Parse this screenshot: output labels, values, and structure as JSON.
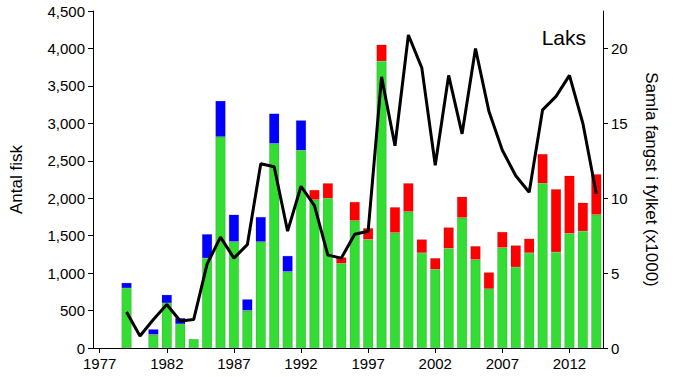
{
  "chart_data": {
    "type": "bar",
    "title": "Laks",
    "y_label": "Antal fisk",
    "y2_label": "Samla fangst i fylket (x1000)",
    "stacked": true,
    "grid": false,
    "categories": [
      1977,
      null,
      null,
      null,
      null,
      1982,
      null,
      null,
      null,
      null,
      1987,
      null,
      null,
      null,
      null,
      1992,
      null,
      null,
      null,
      null,
      1997,
      null,
      null,
      null,
      null,
      2002,
      null,
      null,
      null,
      null,
      2007,
      null,
      null,
      null,
      null,
      2012,
      null,
      null
    ],
    "ylim": [
      0,
      4500
    ],
    "yticks": [
      0,
      500,
      1000,
      1500,
      2000,
      2500,
      3000,
      3500,
      4000,
      4500
    ],
    "y2lim": [
      0,
      22.5
    ],
    "y2ticks": [
      0,
      5,
      10,
      15,
      20
    ],
    "series": [
      {
        "type": "bar",
        "color": "#33dd33",
        "values": [
          null,
          null,
          800,
          null,
          180,
          600,
          320,
          120,
          1200,
          2820,
          1420,
          500,
          1420,
          2730,
          1020,
          2640,
          1980,
          2000,
          1130,
          1700,
          1450,
          3830,
          1540,
          1820,
          1270,
          1050,
          1330,
          1740,
          1180,
          790,
          1340,
          1080,
          1270,
          2200,
          1280,
          1530,
          1560,
          1780
        ]
      },
      {
        "type": "bar",
        "color": "#ff0000",
        "values": [
          null,
          null,
          null,
          null,
          null,
          null,
          null,
          null,
          null,
          null,
          null,
          null,
          null,
          null,
          null,
          null,
          130,
          200,
          80,
          250,
          150,
          220,
          340,
          380,
          180,
          150,
          280,
          280,
          180,
          220,
          210,
          290,
          190,
          390,
          840,
          770,
          380,
          540
        ]
      },
      {
        "type": "bar",
        "color": "#0000ff",
        "values": [
          null,
          null,
          70,
          null,
          70,
          110,
          80,
          null,
          320,
          480,
          360,
          150,
          330,
          400,
          210,
          400,
          null,
          null,
          null,
          null,
          null,
          null,
          null,
          null,
          null,
          null,
          null,
          null,
          null,
          null,
          null,
          null,
          null,
          null,
          null,
          null,
          null,
          null
        ]
      },
      {
        "type": "line",
        "axis": "y2",
        "color": "#000000",
        "values": [
          null,
          null,
          2.4,
          0.8,
          1.9,
          2.9,
          1.8,
          1.9,
          5.6,
          7.4,
          6.0,
          6.9,
          12.3,
          12.1,
          7.8,
          10.8,
          9.5,
          6.2,
          6.0,
          7.6,
          7.8,
          18.1,
          13.5,
          20.9,
          18.7,
          12.2,
          18.2,
          14.3,
          20.0,
          15.8,
          13.2,
          11.5,
          10.4,
          15.9,
          16.8,
          18.2,
          15.0,
          10.3
        ]
      }
    ]
  }
}
